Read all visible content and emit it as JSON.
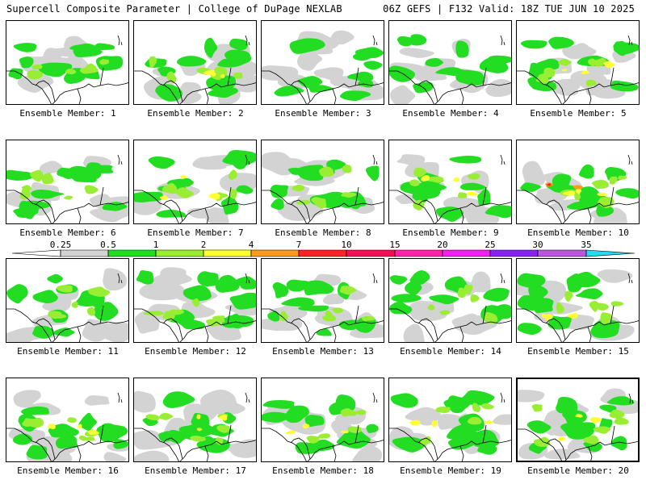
{
  "header": {
    "title": "Supercell Composite Parameter | College of DuPage NEXLAB",
    "run_info": "06Z GEFS | F132 Valid: 18Z TUE JUN 10 2025"
  },
  "legend": {
    "labels": [
      "0.25",
      "0.5",
      "1",
      "2",
      "4",
      "7",
      "10",
      "15",
      "20",
      "25",
      "30",
      "35"
    ],
    "colors": [
      "#d3d3d3",
      "#22dd22",
      "#99ee33",
      "#ffff33",
      "#ff9922",
      "#ff2222",
      "#ee1155",
      "#ff22aa",
      "#ee22ee",
      "#8822ee",
      "#bb55dd",
      "#22ddee"
    ]
  },
  "members": [
    {
      "label": "Ensemble Member: 1",
      "intensity": 2
    },
    {
      "label": "Ensemble Member: 2",
      "intensity": 3
    },
    {
      "label": "Ensemble Member: 3",
      "intensity": 1
    },
    {
      "label": "Ensemble Member: 4",
      "intensity": 1
    },
    {
      "label": "Ensemble Member: 5",
      "intensity": 3
    },
    {
      "label": "Ensemble Member: 6",
      "intensity": 2
    },
    {
      "label": "Ensemble Member: 7",
      "intensity": 3
    },
    {
      "label": "Ensemble Member: 8",
      "intensity": 2
    },
    {
      "label": "Ensemble Member: 9",
      "intensity": 3
    },
    {
      "label": "Ensemble Member: 10",
      "intensity": 4
    },
    {
      "label": "Ensemble Member: 11",
      "intensity": 2
    },
    {
      "label": "Ensemble Member: 12",
      "intensity": 2
    },
    {
      "label": "Ensemble Member: 13",
      "intensity": 2
    },
    {
      "label": "Ensemble Member: 14",
      "intensity": 2
    },
    {
      "label": "Ensemble Member: 15",
      "intensity": 3
    },
    {
      "label": "Ensemble Member: 16",
      "intensity": 3
    },
    {
      "label": "Ensemble Member: 17",
      "intensity": 3
    },
    {
      "label": "Ensemble Member: 18",
      "intensity": 3
    },
    {
      "label": "Ensemble Member: 19",
      "intensity": 3
    },
    {
      "label": "Ensemble Member: 20",
      "intensity": 3
    }
  ],
  "selected_member": 20
}
